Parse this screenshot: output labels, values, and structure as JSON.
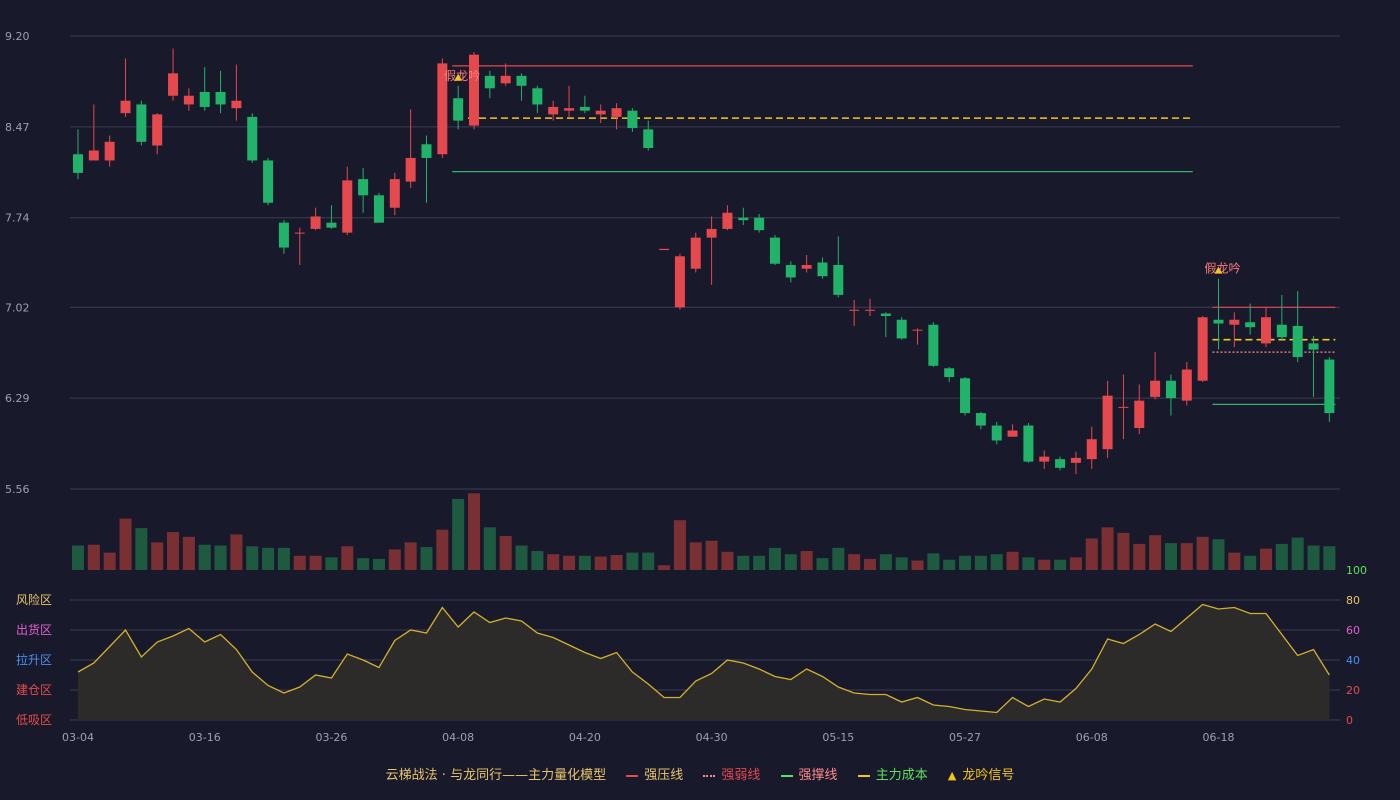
{
  "chart_data": {
    "type": "candlestick",
    "title": "",
    "price_axis": {
      "min": 5.56,
      "max": 9.2,
      "ticks": [
        "9.20",
        "8.47",
        "7.74",
        "7.02",
        "6.29",
        "5.56"
      ]
    },
    "x_ticks": [
      {
        "i": 0,
        "label": "03-04"
      },
      {
        "i": 8,
        "label": "03-16"
      },
      {
        "i": 16,
        "label": "03-26"
      },
      {
        "i": 24,
        "label": "04-08"
      },
      {
        "i": 32,
        "label": "04-20"
      },
      {
        "i": 40,
        "label": "04-30"
      },
      {
        "i": 48,
        "label": "05-15"
      },
      {
        "i": 56,
        "label": "05-27"
      },
      {
        "i": 64,
        "label": "06-08"
      },
      {
        "i": 72,
        "label": "06-18"
      }
    ],
    "candles": [
      [
        8.25,
        8.1,
        8.45,
        8.05
      ],
      [
        8.2,
        8.28,
        8.65,
        8.22
      ],
      [
        8.2,
        8.35,
        8.4,
        8.15
      ],
      [
        8.58,
        8.68,
        9.02,
        8.55
      ],
      [
        8.65,
        8.35,
        8.68,
        8.32
      ],
      [
        8.32,
        8.57,
        8.58,
        8.25
      ],
      [
        8.72,
        8.9,
        9.1,
        8.68
      ],
      [
        8.65,
        8.72,
        8.78,
        8.6
      ],
      [
        8.75,
        8.63,
        8.95,
        8.6
      ],
      [
        8.75,
        8.65,
        8.92,
        8.58
      ],
      [
        8.62,
        8.68,
        8.97,
        8.52
      ],
      [
        8.55,
        8.2,
        8.58,
        8.18
      ],
      [
        8.2,
        7.86,
        8.22,
        7.84
      ],
      [
        7.7,
        7.5,
        7.72,
        7.45
      ],
      [
        7.62,
        7.62,
        7.66,
        7.36
      ],
      [
        7.65,
        7.75,
        7.82,
        7.64
      ],
      [
        7.7,
        7.66,
        7.84,
        7.65
      ],
      [
        7.62,
        8.04,
        8.15,
        7.6
      ],
      [
        8.05,
        7.92,
        8.14,
        7.78
      ],
      [
        7.92,
        7.7,
        7.94,
        7.7
      ],
      [
        7.82,
        8.05,
        8.1,
        7.76
      ],
      [
        8.03,
        8.22,
        8.61,
        7.98
      ],
      [
        8.33,
        8.22,
        8.4,
        7.86
      ],
      [
        8.25,
        8.98,
        9.02,
        8.22
      ],
      [
        8.7,
        8.52,
        8.8,
        8.45
      ],
      [
        8.48,
        9.05,
        9.07,
        8.45
      ],
      [
        8.88,
        8.78,
        8.92,
        8.7
      ],
      [
        8.82,
        8.88,
        8.98,
        8.8
      ],
      [
        8.88,
        8.8,
        8.9,
        8.68
      ],
      [
        8.78,
        8.65,
        8.8,
        8.58
      ],
      [
        8.57,
        8.63,
        8.68,
        8.52
      ],
      [
        8.6,
        8.62,
        8.8,
        8.55
      ],
      [
        8.63,
        8.6,
        8.72,
        8.58
      ],
      [
        8.57,
        8.6,
        8.65,
        8.5
      ],
      [
        8.55,
        8.62,
        8.66,
        8.45
      ],
      [
        8.6,
        8.46,
        8.62,
        8.43
      ],
      [
        8.45,
        8.3,
        8.52,
        8.28
      ],
      [
        7.48,
        7.49,
        7.49,
        7.48
      ],
      [
        7.02,
        7.43,
        7.45,
        7.0
      ],
      [
        7.33,
        7.58,
        7.62,
        7.3
      ],
      [
        7.58,
        7.65,
        7.75,
        7.2
      ],
      [
        7.65,
        7.78,
        7.84,
        7.64
      ],
      [
        7.74,
        7.72,
        7.82,
        7.68
      ],
      [
        7.74,
        7.64,
        7.77,
        7.62
      ],
      [
        7.58,
        7.37,
        7.6,
        7.36
      ],
      [
        7.36,
        7.26,
        7.39,
        7.22
      ],
      [
        7.33,
        7.36,
        7.44,
        7.3
      ],
      [
        7.38,
        7.27,
        7.42,
        7.25
      ],
      [
        7.36,
        7.12,
        7.59,
        7.1
      ],
      [
        7.0,
        7.0,
        7.08,
        6.87
      ],
      [
        7.0,
        7.0,
        7.09,
        6.95
      ],
      [
        6.97,
        6.95,
        6.98,
        6.78
      ],
      [
        6.92,
        6.77,
        6.94,
        6.76
      ],
      [
        6.84,
        6.84,
        6.85,
        6.72
      ],
      [
        6.88,
        6.55,
        6.9,
        6.54
      ],
      [
        6.53,
        6.46,
        6.54,
        6.42
      ],
      [
        6.45,
        6.17,
        6.46,
        6.15
      ],
      [
        6.17,
        6.07,
        6.18,
        6.04
      ],
      [
        6.07,
        5.95,
        6.1,
        5.92
      ],
      [
        5.98,
        6.03,
        6.08,
        5.98
      ],
      [
        6.07,
        5.78,
        6.09,
        5.77
      ],
      [
        5.78,
        5.82,
        5.87,
        5.72
      ],
      [
        5.8,
        5.73,
        5.82,
        5.71
      ],
      [
        5.77,
        5.81,
        5.86,
        5.68
      ],
      [
        5.8,
        5.96,
        6.06,
        5.72
      ],
      [
        5.88,
        6.31,
        6.43,
        5.81
      ],
      [
        6.22,
        6.22,
        6.48,
        5.96
      ],
      [
        6.05,
        6.27,
        6.4,
        6.0
      ],
      [
        6.3,
        6.43,
        6.66,
        6.28
      ],
      [
        6.43,
        6.29,
        6.48,
        6.15
      ],
      [
        6.27,
        6.52,
        6.58,
        6.23
      ],
      [
        6.43,
        6.94,
        6.95,
        6.42
      ],
      [
        6.92,
        6.89,
        7.25,
        6.68
      ],
      [
        6.88,
        6.92,
        6.98,
        6.7
      ],
      [
        6.9,
        6.86,
        7.05,
        6.8
      ],
      [
        6.73,
        6.94,
        7.02,
        6.7
      ],
      [
        6.88,
        6.78,
        7.12,
        6.75
      ],
      [
        6.87,
        6.62,
        7.15,
        6.58
      ],
      [
        6.73,
        6.68,
        6.79,
        6.3
      ],
      [
        6.6,
        6.17,
        6.62,
        6.1
      ]
    ],
    "volume": [
      0.31,
      0.32,
      0.22,
      0.65,
      0.53,
      0.35,
      0.48,
      0.42,
      0.32,
      0.31,
      0.45,
      0.3,
      0.28,
      0.28,
      0.18,
      0.18,
      0.16,
      0.3,
      0.15,
      0.14,
      0.26,
      0.35,
      0.29,
      0.51,
      0.9,
      0.97,
      0.54,
      0.43,
      0.31,
      0.24,
      0.2,
      0.18,
      0.18,
      0.17,
      0.19,
      0.22,
      0.22,
      0.06,
      0.63,
      0.35,
      0.37,
      0.23,
      0.18,
      0.18,
      0.28,
      0.2,
      0.24,
      0.15,
      0.28,
      0.2,
      0.14,
      0.2,
      0.16,
      0.12,
      0.21,
      0.13,
      0.18,
      0.18,
      0.2,
      0.23,
      0.16,
      0.13,
      0.13,
      0.16,
      0.4,
      0.54,
      0.47,
      0.33,
      0.44,
      0.34,
      0.34,
      0.42,
      0.39,
      0.22,
      0.18,
      0.27,
      0.33,
      0.41,
      0.31,
      0.3
    ],
    "indicator": {
      "range": [
        0,
        100
      ],
      "ticks": [
        "100",
        "80",
        "60",
        "40",
        "20",
        "0"
      ],
      "zones": [
        "风险区",
        "出货区",
        "拉升区",
        "建仓区",
        "低吸区"
      ],
      "values": [
        32,
        38,
        49,
        60,
        42,
        52,
        56,
        61,
        52,
        57,
        47,
        32,
        23,
        18,
        22,
        30,
        28,
        44,
        40,
        35,
        53,
        60,
        58,
        75,
        62,
        72,
        65,
        68,
        66,
        58,
        55,
        50,
        45,
        41,
        45,
        32,
        24,
        15,
        15,
        26,
        31,
        40,
        38,
        34,
        29,
        27,
        34,
        29,
        22,
        18,
        17,
        17,
        12,
        15,
        10,
        9,
        7,
        6,
        5,
        15,
        9,
        14,
        12,
        21,
        34,
        54,
        51,
        57,
        64,
        59,
        68,
        77,
        74,
        75,
        71,
        71,
        57,
        43,
        47,
        30
      ]
    },
    "signals": [
      {
        "i": 24,
        "label": "假龙吟"
      },
      {
        "i": 72,
        "label": "假龙吟"
      }
    ],
    "levels": [
      {
        "from": 24,
        "to": 70,
        "value": 8.96,
        "kind": "strong_resist",
        "color": "#e5484d"
      },
      {
        "from": 25,
        "to": 70,
        "value": 8.54,
        "kind": "main_cost",
        "color": "#f5c518"
      },
      {
        "from": 24,
        "to": 70,
        "value": 8.11,
        "kind": "strong_support",
        "color": "#32b26d"
      },
      {
        "from": 72,
        "to": 79,
        "value": 7.02,
        "kind": "strong_resist",
        "color": "#e5484d"
      },
      {
        "from": 72,
        "to": 79,
        "value": 6.76,
        "kind": "main_cost",
        "color": "#f5c518"
      },
      {
        "from": 72,
        "to": 79,
        "value": 6.66,
        "kind": "weak",
        "color": "#ff8a8a"
      },
      {
        "from": 72,
        "to": 79,
        "value": 6.24,
        "kind": "strong_support",
        "color": "#32b26d"
      }
    ],
    "grid": true,
    "legend_position": "bottom-center"
  },
  "legend": {
    "title": "云梯战法 · 与龙同行——主力量化模型",
    "items": [
      {
        "label": "强压线",
        "color": "#e5484d",
        "style": "solid"
      },
      {
        "label": "强弱线",
        "color": "#ff8a8a",
        "style": "dotted"
      },
      {
        "label": "强撑线",
        "color": "#5be05b",
        "style": "solid"
      },
      {
        "label": "主力成本",
        "color": "#f5c518",
        "style": "dashed"
      },
      {
        "label": "龙吟信号",
        "color": "#f5c518",
        "style": "triangle"
      }
    ]
  },
  "colors": {
    "up": "#e5484d",
    "down": "#22b36a",
    "vol_up": "#7a3033",
    "vol_down": "#1e5a40",
    "grid": "#3a3d50",
    "axis_text": "#9aa0b0",
    "zone_colors": [
      "#e8c46a",
      "#e060d0",
      "#4c8ff0",
      "#e64a4a",
      "#e64a4a"
    ],
    "right_tick_colors": [
      "#5be05b",
      "#e8c46a",
      "#e060d0",
      "#4c8ff0",
      "#e64a4a",
      "#e64a4a"
    ]
  }
}
